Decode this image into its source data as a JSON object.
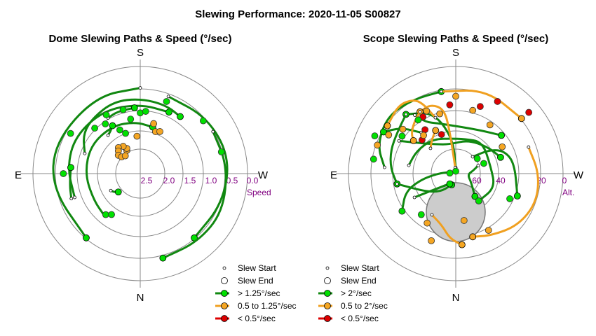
{
  "title": "Slewing Performance: 2020-11-05 S00827",
  "colors": {
    "fast": "#00e000",
    "fast_line": "#118811",
    "mid": "#f5a623",
    "mid_line": "#f0a020",
    "slow": "#dd0000",
    "ring": "#888888",
    "axis": "#888888",
    "tick_label": "#800080",
    "scope_blocked": "#cccccc"
  },
  "chart_data": [
    {
      "type": "scatter",
      "projection": "polar",
      "title": "Dome Slewing Paths & Speed (°/sec)",
      "directions": {
        "top": "S",
        "bottom": "N",
        "left": "E",
        "right": "W"
      },
      "radial_axis_label": "Speed",
      "radial_ticks": [
        "2.5",
        "2.0",
        "1.5",
        "1.0",
        "0.5",
        "0.0"
      ],
      "radial_tick_values": [
        2.5,
        2.0,
        1.5,
        1.0,
        0.5,
        0.0
      ],
      "rmax": 3.0,
      "grid": true,
      "legend": {
        "position": "bottom-right",
        "entries": [
          "Slew Start",
          "Slew End",
          "> 1.25°/sec",
          "0.5 to 1.25°/sec",
          "< 0.5°/sec"
        ]
      },
      "paths": [
        {
          "category": "fast",
          "points": [
            [
              180,
              2.4
            ],
            [
              150,
              2.5
            ],
            [
              110,
              2.55
            ],
            [
              80,
              2.5
            ],
            [
              40,
              2.35
            ]
          ]
        },
        {
          "category": "fast",
          "points": [
            [
              200,
              2.3
            ],
            [
              230,
              2.45
            ],
            [
              260,
              2.55
            ],
            [
              290,
              2.45
            ],
            [
              320,
              2.35
            ]
          ]
        },
        {
          "category": "fast",
          "points": [
            [
              70,
              1.95
            ],
            [
              95,
              2.05
            ],
            [
              120,
              2.1
            ],
            [
              150,
              2.05
            ],
            [
              180,
              1.95
            ],
            [
              205,
              1.9
            ]
          ]
        },
        {
          "category": "fast",
          "points": [
            [
              40,
              1.55
            ],
            [
              60,
              1.5
            ],
            [
              90,
              1.55
            ],
            [
              120,
              1.6
            ],
            [
              150,
              1.55
            ],
            [
              175,
              1.45
            ],
            [
              195,
              1.35
            ]
          ]
        },
        {
          "category": "fast",
          "points": [
            [
              240,
              2.35
            ],
            [
              265,
              2.45
            ],
            [
              295,
              2.55
            ],
            [
              320,
              2.5
            ],
            [
              345,
              2.45
            ]
          ]
        },
        {
          "category": "fast",
          "points": [
            [
              110,
              1.65
            ],
            [
              125,
              1.95
            ],
            [
              140,
              2.05
            ],
            [
              160,
              2.15
            ],
            [
              180,
              2.1
            ],
            [
              200,
              2.05
            ],
            [
              215,
              1.95
            ]
          ]
        },
        {
          "category": "fast",
          "points": [
            [
              70,
              2.05
            ],
            [
              80,
              2.0
            ],
            [
              95,
              1.95
            ]
          ]
        },
        {
          "category": "fast",
          "points": [
            [
              150,
              1.8
            ],
            [
              160,
              1.85
            ],
            [
              175,
              1.85
            ]
          ]
        },
        {
          "category": "fast",
          "points": [
            [
              140,
              1.4
            ],
            [
              145,
              1.45
            ],
            [
              150,
              1.55
            ]
          ]
        },
        {
          "category": "fast",
          "points": [
            [
              60,
              0.95
            ],
            [
              55,
              0.9
            ],
            [
              50,
              0.8
            ]
          ]
        }
      ],
      "points": [
        {
          "category": "mid",
          "az": 150,
          "speed": 0.75
        },
        {
          "category": "mid",
          "az": 152,
          "speed": 0.8
        },
        {
          "category": "mid",
          "az": 148,
          "speed": 0.9
        },
        {
          "category": "mid",
          "az": 140,
          "speed": 0.95
        },
        {
          "category": "mid",
          "az": 136,
          "speed": 0.88
        },
        {
          "category": "mid",
          "az": 130,
          "speed": 0.8
        },
        {
          "category": "mid",
          "az": 132,
          "speed": 0.7
        },
        {
          "category": "mid",
          "az": 140,
          "speed": 0.65
        },
        {
          "category": "mid",
          "az": 175,
          "speed": 1.05
        },
        {
          "category": "mid",
          "az": 200,
          "speed": 1.25
        },
        {
          "category": "mid",
          "az": 205,
          "speed": 1.3
        },
        {
          "category": "mid",
          "az": 195,
          "speed": 1.45
        },
        {
          "category": "fast",
          "az": 160,
          "speed": 1.2
        },
        {
          "category": "fast",
          "az": 170,
          "speed": 1.55
        },
        {
          "category": "fast",
          "az": 180,
          "speed": 1.7
        },
        {
          "category": "fast",
          "az": 185,
          "speed": 1.75
        },
        {
          "category": "fast",
          "az": 165,
          "speed": 1.85
        },
        {
          "category": "fast",
          "az": 150,
          "speed": 1.9
        },
        {
          "category": "fast",
          "az": 135,
          "speed": 1.8
        },
        {
          "category": "fast",
          "az": 155,
          "speed": 1.35
        },
        {
          "category": "fast",
          "az": 145,
          "speed": 1.7
        },
        {
          "category": "fast",
          "az": 200,
          "speed": 2.15
        },
        {
          "category": "fast",
          "az": 230,
          "speed": 2.3
        },
        {
          "category": "fast",
          "az": 255,
          "speed": 2.35
        },
        {
          "category": "fast",
          "az": 40,
          "speed": 1.5
        },
        {
          "category": "fast",
          "az": 35,
          "speed": 1.4
        },
        {
          "category": "fast",
          "az": 90,
          "speed": 2.15
        },
        {
          "category": "fast",
          "az": 120,
          "speed": 2.25
        }
      ]
    },
    {
      "type": "scatter",
      "projection": "polar",
      "title": "Scope Slewing Paths & Speed (°/sec)",
      "directions": {
        "top": "S",
        "bottom": "N",
        "left": "E",
        "right": "W"
      },
      "radial_axis_label": "Alt.",
      "radial_ticks": [
        "60",
        "40",
        "20",
        "0"
      ],
      "radial_tick_values": [
        60,
        40,
        20,
        0
      ],
      "rmax": 90,
      "grid": true,
      "blocked_region": "circle",
      "legend": {
        "position": "bottom",
        "entries": [
          "Slew Start",
          "Slew End",
          "> 2°/sec",
          "0.5 to 2°/sec",
          "< 0.5°/sec"
        ]
      },
      "paths": [
        {
          "category": "fast",
          "points": [
            [
              180,
              5
            ],
            [
              175,
              30
            ],
            [
              160,
              55
            ],
            [
              140,
              65
            ]
          ]
        },
        {
          "category": "fast",
          "points": [
            [
              140,
              65
            ],
            [
              125,
              60
            ],
            [
              110,
              58
            ],
            [
              95,
              55
            ],
            [
              80,
              50
            ]
          ]
        },
        {
          "category": "fast",
          "points": [
            [
              80,
              50
            ],
            [
              60,
              30
            ],
            [
              40,
              20
            ],
            [
              20,
              10
            ]
          ]
        },
        {
          "category": "fast",
          "points": [
            [
              105,
              5
            ],
            [
              90,
              15
            ],
            [
              80,
              30
            ],
            [
              70,
              45
            ],
            [
              55,
              55
            ]
          ]
        },
        {
          "category": "fast",
          "points": [
            [
              120,
              55
            ],
            [
              130,
              40
            ],
            [
              145,
              30
            ],
            [
              170,
              25
            ],
            [
              200,
              30
            ],
            [
              230,
              35
            ],
            [
              250,
              40
            ]
          ]
        },
        {
          "category": "fast",
          "points": [
            [
              250,
              20
            ],
            [
              260,
              15
            ],
            [
              275,
              10
            ],
            [
              300,
              15
            ],
            [
              320,
              25
            ]
          ]
        },
        {
          "category": "fast",
          "points": [
            [
              225,
              20
            ],
            [
              235,
              35
            ],
            [
              245,
              45
            ],
            [
              260,
              50
            ],
            [
              290,
              55
            ]
          ]
        },
        {
          "category": "fast",
          "points": [
            [
              145,
              60
            ],
            [
              150,
              50
            ],
            [
              160,
              45
            ],
            [
              180,
              40
            ],
            [
              210,
              42
            ],
            [
              230,
              50
            ]
          ]
        },
        {
          "category": "fast",
          "points": [
            [
              100,
              40
            ],
            [
              120,
              38
            ],
            [
              145,
              35
            ],
            [
              170,
              30
            ],
            [
              195,
              30
            ],
            [
              220,
              35
            ],
            [
              260,
              30
            ],
            [
              290,
              35
            ],
            [
              320,
              30
            ]
          ]
        },
        {
          "category": "fast",
          "points": [
            [
              95,
              60
            ],
            [
              110,
              70
            ],
            [
              130,
              75
            ],
            [
              150,
              72
            ],
            [
              170,
              70
            ]
          ]
        },
        {
          "category": "fast",
          "points": [
            [
              60,
              40
            ],
            [
              55,
              25
            ],
            [
              45,
              15
            ],
            [
              30,
              10
            ]
          ]
        },
        {
          "category": "fast",
          "points": [
            [
              140,
              45
            ],
            [
              130,
              60
            ],
            [
              120,
              70
            ]
          ]
        }
      ],
      "mid_paths": [
        {
          "category": "mid",
          "points": [
            [
              175,
              5
            ],
            [
              172,
              35
            ],
            [
              170,
              55
            ],
            [
              160,
              62
            ],
            [
              150,
              60
            ]
          ]
        },
        {
          "category": "mid",
          "points": [
            [
              150,
              60
            ],
            [
              140,
              55
            ],
            [
              132,
              50
            ],
            [
              128,
              45
            ]
          ]
        },
        {
          "category": "mid",
          "points": [
            [
              160,
              50
            ],
            [
              155,
              65
            ],
            [
              150,
              72
            ],
            [
              140,
              75
            ],
            [
              125,
              70
            ]
          ]
        },
        {
          "category": "mid",
          "points": [
            [
              170,
              70
            ],
            [
              200,
              75
            ],
            [
              230,
              72
            ]
          ]
        },
        {
          "category": "mid",
          "points": [
            [
              250,
              65
            ],
            [
              270,
              70
            ],
            [
              290,
              72
            ],
            [
              310,
              68
            ],
            [
              330,
              60
            ],
            [
              345,
              55
            ]
          ]
        },
        {
          "category": "mid",
          "points": [
            [
              30,
              40
            ],
            [
              15,
              45
            ],
            [
              5,
              55
            ],
            [
              355,
              60
            ]
          ]
        },
        {
          "category": "mid",
          "points": [
            [
              135,
              30
            ],
            [
              145,
              35
            ],
            [
              155,
              40
            ]
          ]
        }
      ],
      "points": [
        {
          "category": "slow",
          "az": 145,
          "speed": 45
        },
        {
          "category": "slow",
          "az": 150,
          "speed": 55
        },
        {
          "category": "slow",
          "az": 135,
          "speed": 40
        },
        {
          "category": "slow",
          "az": 160,
          "speed": 35
        },
        {
          "category": "slow",
          "az": 200,
          "speed": 60
        },
        {
          "category": "slow",
          "az": 210,
          "speed": 70
        },
        {
          "category": "slow",
          "az": 175,
          "speed": 58
        },
        {
          "category": "slow",
          "az": 230,
          "speed": 80
        },
        {
          "category": "mid",
          "az": 140,
          "speed": 42
        },
        {
          "category": "mid",
          "az": 155,
          "speed": 58
        },
        {
          "category": "mid",
          "az": 165,
          "speed": 52
        },
        {
          "category": "mid",
          "az": 130,
          "speed": 58
        },
        {
          "category": "mid",
          "az": 120,
          "speed": 65
        },
        {
          "category": "mid",
          "az": 110,
          "speed": 70
        },
        {
          "category": "mid",
          "az": 180,
          "speed": 65
        },
        {
          "category": "mid",
          "az": 195,
          "speed": 55
        },
        {
          "category": "mid",
          "az": 215,
          "speed": 50
        },
        {
          "category": "mid",
          "az": 240,
          "speed": 45
        },
        {
          "category": "mid",
          "az": 30,
          "speed": 48
        },
        {
          "category": "mid",
          "az": 20,
          "speed": 60
        },
        {
          "category": "mid",
          "az": 350,
          "speed": 40
        },
        {
          "category": "mid",
          "az": 330,
          "speed": 55
        },
        {
          "category": "fast",
          "az": 180,
          "speed": 2
        },
        {
          "category": "fast",
          "az": 95,
          "speed": 5
        },
        {
          "category": "fast",
          "az": 250,
          "speed": 25
        },
        {
          "category": "fast",
          "az": 235,
          "speed": 22
        },
        {
          "category": "fast",
          "az": 125,
          "speed": 55
        },
        {
          "category": "fast",
          "az": 115,
          "speed": 75
        },
        {
          "category": "fast",
          "az": 100,
          "speed": 70
        },
        {
          "category": "fast",
          "az": 295,
          "speed": 50
        },
        {
          "category": "fast",
          "az": 320,
          "speed": 30
        },
        {
          "category": "fast",
          "az": 40,
          "speed": 45
        },
        {
          "category": "fast",
          "az": 55,
          "speed": 55
        },
        {
          "category": "fast",
          "az": 145,
          "speed": 55
        }
      ]
    }
  ]
}
